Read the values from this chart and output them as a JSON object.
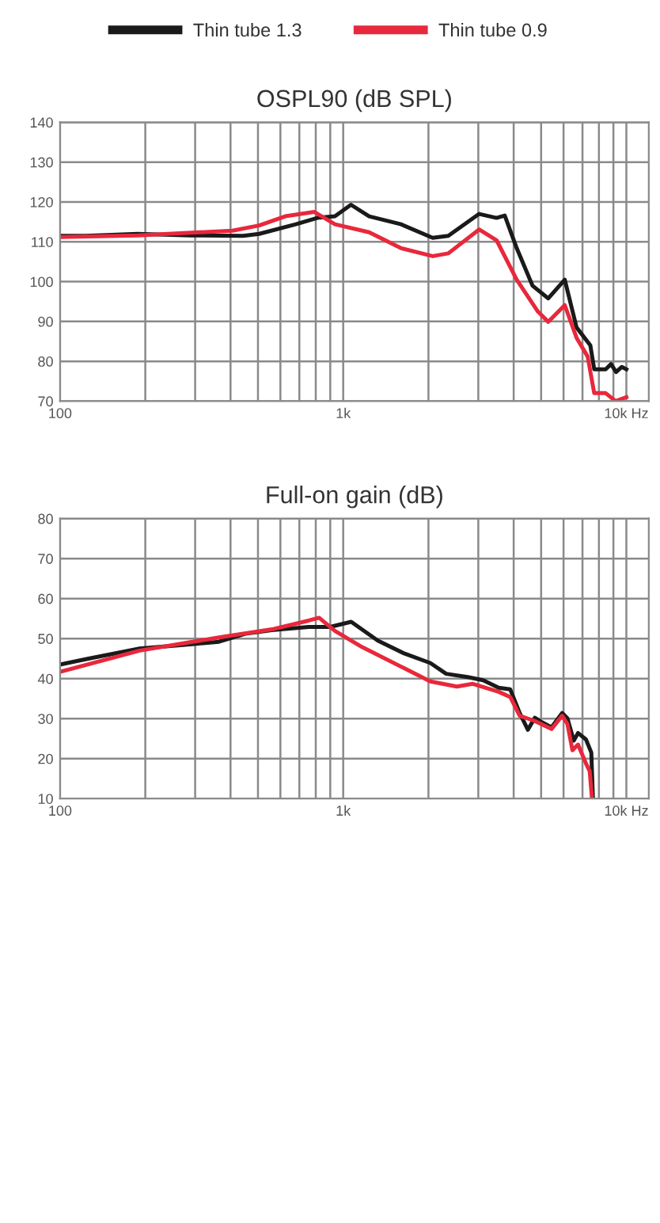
{
  "chart_data": [
    {
      "type": "line",
      "title": "OSPL90 (dB SPL)",
      "legend": "top",
      "grid": true,
      "log": "x",
      "xlim": [
        100,
        12000
      ],
      "ylim": [
        70,
        140
      ],
      "xticks": [
        100,
        {
          "value": 200,
          "label": null
        },
        {
          "value": 300,
          "label": null
        },
        {
          "value": 400,
          "label": null
        },
        {
          "value": 500,
          "label": null
        },
        {
          "value": 600,
          "label": null
        },
        {
          "value": 700,
          "label": null
        },
        {
          "value": 800,
          "label": null
        },
        {
          "value": 900,
          "label": null
        },
        {
          "value": 1000,
          "label": "1k"
        },
        {
          "value": 2000,
          "label": null
        },
        {
          "value": 3000,
          "label": null
        },
        {
          "value": 4000,
          "label": null
        },
        {
          "value": 5000,
          "label": null
        },
        {
          "value": 6000,
          "label": null
        },
        {
          "value": 7000,
          "label": null
        },
        {
          "value": 8000,
          "label": null
        },
        {
          "value": 9000,
          "label": null
        },
        {
          "value": 10000,
          "label": "10k Hz"
        }
      ],
      "yticks": [
        70,
        80,
        90,
        100,
        110,
        120,
        130,
        140
      ],
      "series": [
        {
          "name": "Thin tube 1.3",
          "color": "#1a1a1a",
          "x": [
            100,
            123,
            188,
            289,
            443,
            505,
            680,
            810,
            935,
            1065,
            1235,
            1600,
            2070,
            2350,
            3020,
            3480,
            3720,
            4100,
            4660,
            5300,
            6060,
            6670,
            7460,
            7700,
            8450,
            8830,
            9200,
            9640,
            10000
          ],
          "values": [
            111.5,
            111.5,
            112,
            111.6,
            111.5,
            112,
            114.4,
            116,
            116.4,
            119.3,
            116.4,
            114.4,
            111,
            111.5,
            117,
            116,
            116.6,
            108.4,
            99,
            95.8,
            100.5,
            88.5,
            84,
            78,
            78,
            79.3,
            77.3,
            78.6,
            78
          ]
        },
        {
          "name": "Thin tube 0.9",
          "color": "#e8283c",
          "x": [
            100,
            188,
            406,
            505,
            624,
            791,
            935,
            1235,
            1600,
            2070,
            2350,
            3020,
            3480,
            4100,
            4870,
            5300,
            6060,
            6670,
            7300,
            7700,
            8450,
            9170,
            10000
          ],
          "values": [
            111.2,
            111.6,
            112.8,
            114.1,
            116.4,
            117.5,
            114.4,
            112.4,
            108.4,
            106.4,
            107.1,
            113.1,
            110.4,
            100.5,
            92.5,
            89.9,
            94.1,
            85.9,
            81.2,
            72,
            72,
            70,
            71
          ]
        }
      ]
    },
    {
      "type": "line",
      "title": "Full-on gain (dB)",
      "grid": true,
      "log": "x",
      "xlim": [
        100,
        12000
      ],
      "ylim": [
        10,
        80
      ],
      "xticks": [
        100,
        {
          "value": 200,
          "label": null
        },
        {
          "value": 300,
          "label": null
        },
        {
          "value": 400,
          "label": null
        },
        {
          "value": 500,
          "label": null
        },
        {
          "value": 600,
          "label": null
        },
        {
          "value": 700,
          "label": null
        },
        {
          "value": 800,
          "label": null
        },
        {
          "value": 900,
          "label": null
        },
        {
          "value": 1000,
          "label": "1k"
        },
        {
          "value": 2000,
          "label": null
        },
        {
          "value": 3000,
          "label": null
        },
        {
          "value": 4000,
          "label": null
        },
        {
          "value": 5000,
          "label": null
        },
        {
          "value": 6000,
          "label": null
        },
        {
          "value": 7000,
          "label": null
        },
        {
          "value": 8000,
          "label": null
        },
        {
          "value": 9000,
          "label": null
        },
        {
          "value": 10000,
          "label": "10k Hz"
        }
      ],
      "yticks": [
        10,
        20,
        30,
        40,
        50,
        60,
        70,
        80
      ],
      "series": [
        {
          "color": "#1a1a1a",
          "x": [
            100,
            124,
            191,
            293,
            364,
            451,
            559,
            755,
            899,
            1067,
            1325,
            1641,
            2030,
            2310,
            2750,
            3120,
            3540,
            3890,
            4200,
            4490,
            4750,
            5030,
            5440,
            5930,
            6190,
            6520,
            6750,
            7200,
            7520,
            7620
          ],
          "values": [
            43.5,
            44.9,
            47.5,
            48.6,
            49.2,
            51.2,
            52.1,
            52.9,
            52.9,
            54.2,
            49.5,
            46.3,
            43.9,
            41.2,
            40.4,
            39.6,
            37.7,
            37.3,
            31.4,
            27.2,
            30.2,
            29.1,
            27.8,
            31.4,
            30.1,
            24.5,
            26.4,
            24.8,
            21.5,
            10
          ]
        },
        {
          "color": "#e8283c",
          "x": [
            100,
            191,
            364,
            559,
            755,
            822,
            936,
            1165,
            1641,
            2030,
            2520,
            2870,
            3540,
            3890,
            4200,
            4750,
            5440,
            5930,
            6190,
            6450,
            6750,
            7200,
            7420,
            7560
          ],
          "values": [
            41.7,
            47,
            50.3,
            52.3,
            54.5,
            55.2,
            51.9,
            47.9,
            42.6,
            39.3,
            38,
            38.7,
            36.7,
            35.4,
            30.7,
            29.4,
            27.4,
            30.7,
            28.7,
            22.1,
            23.5,
            18.8,
            16.9,
            10
          ]
        }
      ]
    }
  ]
}
